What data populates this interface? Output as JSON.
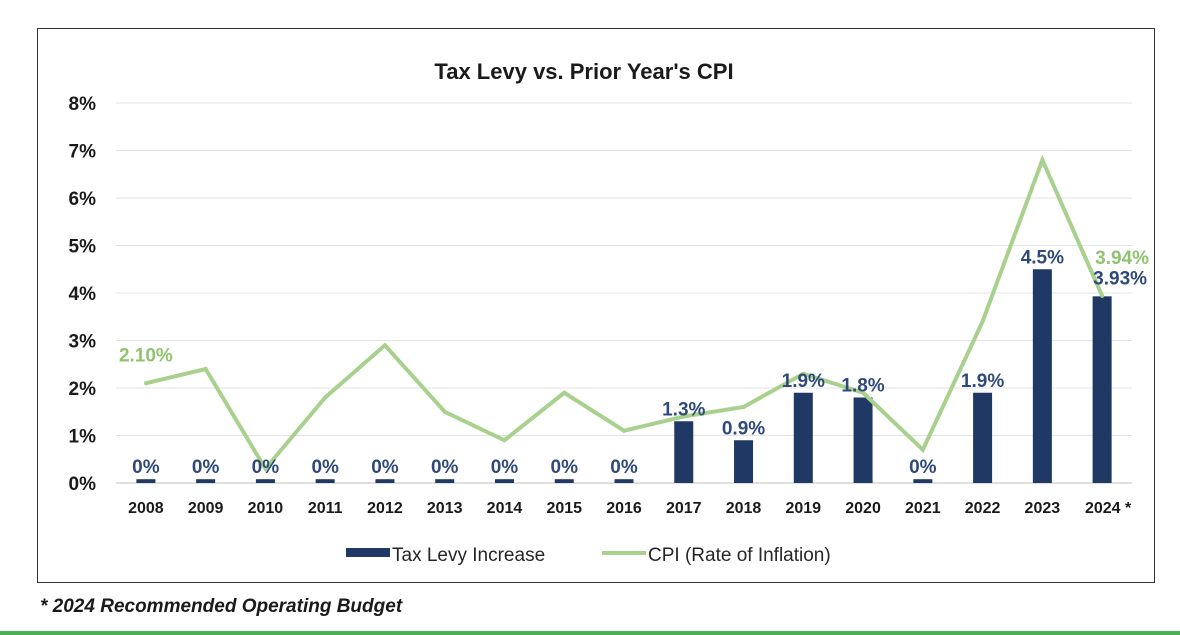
{
  "chart_data": {
    "type": "bar+line",
    "title": "Tax Levy vs. Prior Year's CPI",
    "xlabel": "",
    "ylabel": "",
    "categories": [
      "2008",
      "2009",
      "2010",
      "2011",
      "2012",
      "2013",
      "2014",
      "2015",
      "2016",
      "2017",
      "2018",
      "2019",
      "2020",
      "2021",
      "2022",
      "2023",
      "2024 *"
    ],
    "ylim": [
      0,
      8
    ],
    "yticks": [
      "0%",
      "1%",
      "2%",
      "3%",
      "4%",
      "5%",
      "6%",
      "7%",
      "8%"
    ],
    "grid": true,
    "legend_position": "bottom",
    "series": [
      {
        "name": "Tax Levy Increase",
        "kind": "bar",
        "color": "#1f3864",
        "values": [
          0,
          0,
          0,
          0,
          0,
          0,
          0,
          0,
          0,
          1.3,
          0.9,
          1.9,
          1.8,
          0,
          1.9,
          4.5,
          3.93
        ],
        "labels": [
          "0%",
          "0%",
          "0%",
          "0%",
          "0%",
          "0%",
          "0%",
          "0%",
          "0%",
          "1.3%",
          "0.9%",
          "1.9%",
          "1.8%",
          "0%",
          "1.9%",
          "4.5%",
          "3.93%"
        ]
      },
      {
        "name": "CPI (Rate of Inflation)",
        "kind": "line",
        "color": "#a9d18e",
        "values": [
          2.1,
          2.4,
          0.3,
          1.8,
          2.9,
          1.5,
          0.9,
          1.9,
          1.1,
          1.4,
          1.6,
          2.3,
          1.9,
          0.7,
          3.4,
          6.8,
          3.94
        ],
        "labels": [
          "2.10%",
          "",
          "",
          "",
          "",
          "",
          "",
          "",
          "",
          "",
          "",
          "",
          "",
          "",
          "",
          "",
          "3.94%"
        ]
      }
    ]
  },
  "footnote": "* 2024 Recommended Operating Budget"
}
